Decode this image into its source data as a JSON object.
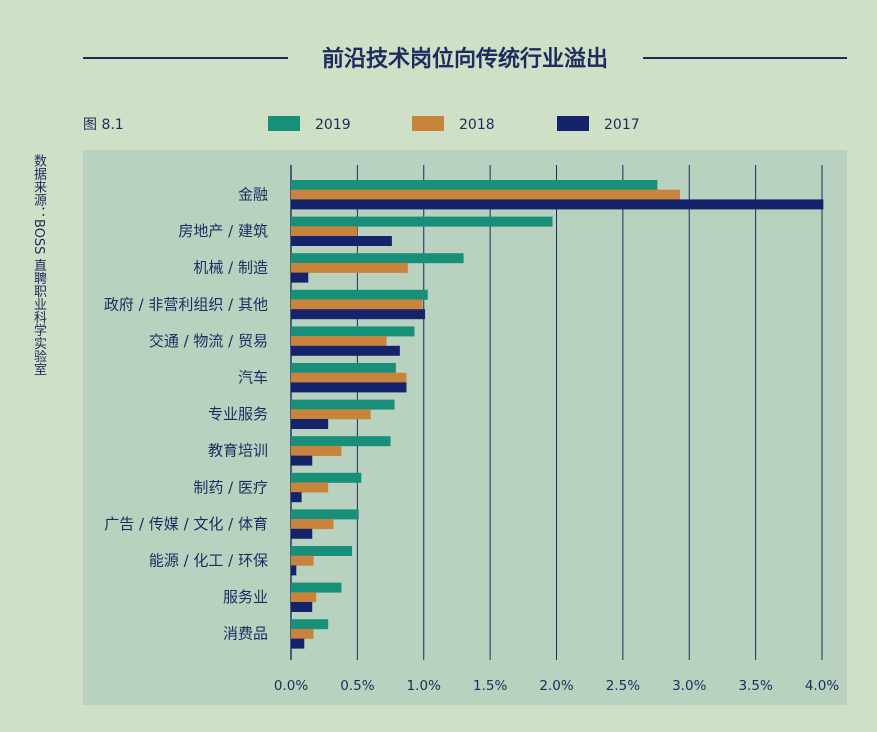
{
  "colors": {
    "page_background": "#cfe0c6",
    "plot_background": "#b8d2bf",
    "text": "#1d2b5f",
    "gridline": "#1d2b5f"
  },
  "chart_data": {
    "type": "bar",
    "orientation": "horizontal",
    "title": "前沿技术岗位向传统行业溢出",
    "figure_label": "图 8.1",
    "source": "数据来源：BOSS 直聘职业科学实验室",
    "xlabel": "",
    "ylabel": "",
    "xlim": [
      0,
      4.0
    ],
    "xticks": [
      0,
      0.5,
      1.0,
      1.5,
      2.0,
      2.5,
      3.0,
      3.5,
      4.0
    ],
    "xtick_labels": [
      "0.0%",
      "0.5%",
      "1.0%",
      "1.5%",
      "2.0%",
      "2.5%",
      "3.0%",
      "3.5%",
      "4.0%"
    ],
    "grid": true,
    "legend_position": "top",
    "categories": [
      "金融",
      "房地产 / 建筑",
      "机械 / 制造",
      "政府 / 非营利组织 / 其他",
      "交通 / 物流 / 贸易",
      "汽车",
      "专业服务",
      "教育培训",
      "制药 / 医疗",
      "广告 / 传媒 / 文化 / 体育",
      "能源 / 化工 / 环保",
      "服务业",
      "消费品"
    ],
    "series": [
      {
        "name": "2019",
        "color": "#178f79",
        "values": [
          2.76,
          1.97,
          1.3,
          1.03,
          0.93,
          0.79,
          0.78,
          0.75,
          0.53,
          0.51,
          0.46,
          0.38,
          0.28
        ]
      },
      {
        "name": "2018",
        "color": "#c8843c",
        "values": [
          2.93,
          0.5,
          0.88,
          0.99,
          0.72,
          0.87,
          0.6,
          0.38,
          0.28,
          0.32,
          0.17,
          0.19,
          0.17
        ]
      },
      {
        "name": "2017",
        "color": "#15246a",
        "values": [
          4.01,
          0.76,
          0.13,
          1.01,
          0.82,
          0.87,
          0.28,
          0.16,
          0.08,
          0.16,
          0.04,
          0.16,
          0.1
        ]
      }
    ]
  }
}
